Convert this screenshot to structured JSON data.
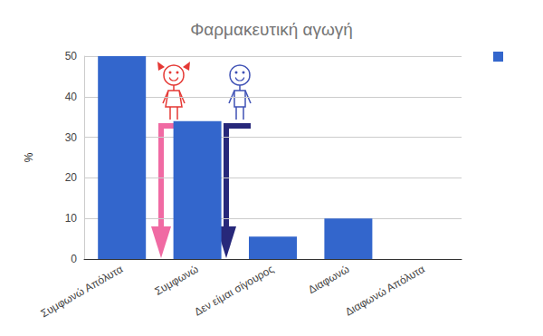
{
  "chart_data": {
    "type": "bar",
    "title": "Φαρμακευτική αγωγή",
    "ylabel": "%",
    "categories": [
      "Συμφωνώ Απόλυτα",
      "Συμφωνώ",
      "Δεν είμαι σίγουρος",
      "Διαφωνώ",
      "Διαφωνώ Απόλυτα"
    ],
    "values": [
      50,
      34,
      5.5,
      10,
      0
    ],
    "color": "#3366cc",
    "ylim": [
      0,
      50
    ],
    "yticks": [
      0,
      10,
      20,
      30,
      40,
      50
    ],
    "grid": true
  }
}
